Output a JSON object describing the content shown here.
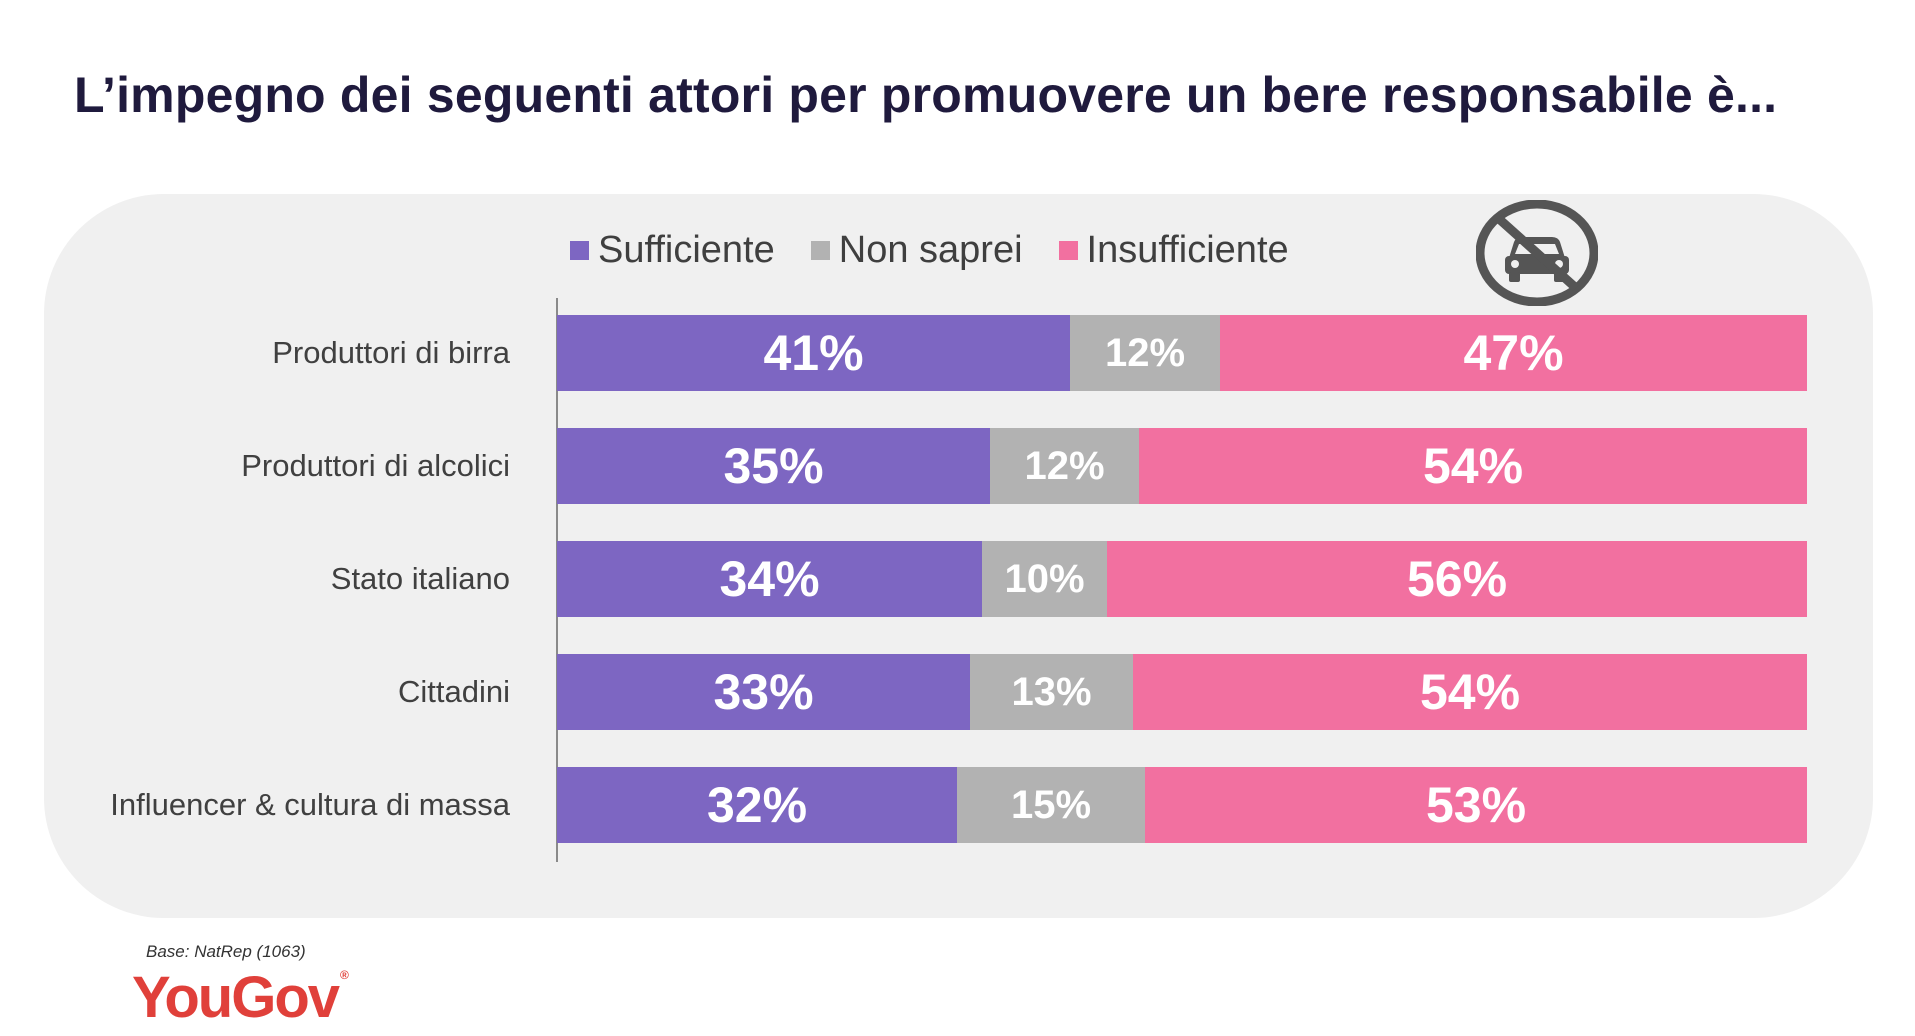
{
  "title": "L’impegno dei seguenti attori per promuovere un bere responsabile è...",
  "colors": {
    "sufficiente": "#7d66c2",
    "non_saprei": "#b2b2b2",
    "insufficiente": "#f270a0",
    "panel_bg": "#f0f0f0",
    "title": "#1f1a3d",
    "brand": "#e0403a"
  },
  "icons": {
    "badge": "no-drunk-driving-icon"
  },
  "chart_data": {
    "type": "bar",
    "orientation": "horizontal",
    "stacked": true,
    "title": "L’impegno dei seguenti attori per promuovere un bere responsabile è...",
    "categories": [
      "Produttori di birra",
      "Produttori di alcolici",
      "Stato italiano",
      "Cittadini",
      "Influencer & cultura di massa"
    ],
    "series": [
      {
        "name": "Sufficiente",
        "values": [
          41,
          35,
          34,
          33,
          32
        ]
      },
      {
        "name": "Non saprei",
        "values": [
          12,
          12,
          10,
          13,
          15
        ]
      },
      {
        "name": "Insufficiente",
        "values": [
          47,
          54,
          56,
          54,
          53
        ]
      }
    ],
    "value_labels": [
      [
        "41%",
        "12%",
        "47%"
      ],
      [
        "35%",
        "12%",
        "54%"
      ],
      [
        "34%",
        "10%",
        "56%"
      ],
      [
        "33%",
        "13%",
        "54%"
      ],
      [
        "32%",
        "15%",
        "53%"
      ]
    ],
    "unit": "%",
    "xlim": [
      0,
      100
    ],
    "legend_position": "top",
    "grid": false
  },
  "footer": {
    "base": "Base: NatRep (1063)",
    "logo": "YouGov",
    "logo_mark": "®"
  }
}
